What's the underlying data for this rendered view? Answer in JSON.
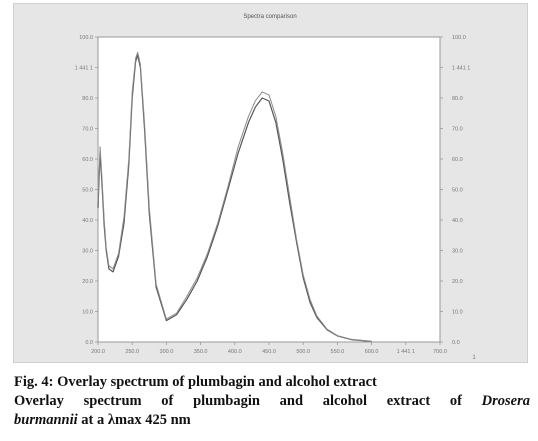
{
  "chart_data": {
    "type": "line",
    "title": "Spectra comparison",
    "xlabel": "",
    "ylabel": "",
    "xlim": [
      200,
      700
    ],
    "ylim": [
      0,
      100
    ],
    "x_ticks": [
      "200.0",
      "250.0",
      "300.0",
      "350.0",
      "400.0",
      "450.0",
      "500.0",
      "550.0",
      "600.0",
      "1 441 1",
      "700.0"
    ],
    "y_ticks_left": [
      "0.0",
      "10.0",
      "20.0",
      "30.0",
      "40.0",
      "50.0",
      "60.0",
      "70.0",
      "80.0",
      "1 441 1",
      "100.0"
    ],
    "y_ticks_right": [
      "0.0",
      "10.0",
      "20.0",
      "30.0",
      "40.0",
      "50.0",
      "60.0",
      "70.0",
      "80.0",
      "1 441 1",
      "100.0"
    ],
    "grid": false,
    "legend": "none",
    "series": [
      {
        "color": "#555555",
        "x": [
          200,
          203,
          206,
          209,
          212,
          216,
          222,
          230,
          238,
          245,
          250,
          255,
          258,
          262,
          268,
          275,
          285,
          300,
          315,
          330,
          345,
          360,
          375,
          390,
          405,
          420,
          430,
          440,
          450,
          460,
          470,
          480,
          490,
          500,
          510,
          520,
          535,
          550,
          570,
          600
        ],
        "y": [
          44,
          62,
          51,
          38,
          30,
          24,
          23,
          28,
          39,
          58,
          80,
          92,
          94,
          90,
          70,
          42,
          18,
          7,
          9,
          14,
          20,
          28,
          38,
          50,
          62,
          72,
          77,
          80,
          79,
          72,
          60,
          46,
          33,
          21,
          13,
          8,
          4,
          2,
          0.8,
          0.2
        ]
      },
      {
        "color": "#8a8a8a",
        "x": [
          200,
          203,
          206,
          209,
          212,
          216,
          222,
          230,
          238,
          245,
          250,
          255,
          258,
          262,
          268,
          275,
          285,
          300,
          315,
          330,
          345,
          360,
          375,
          390,
          405,
          420,
          430,
          440,
          450,
          460,
          470,
          480,
          490,
          500,
          510,
          520,
          535,
          550,
          570,
          600
        ],
        "y": [
          46,
          64,
          53,
          40,
          31,
          25,
          24,
          29,
          41,
          60,
          82,
          93,
          95,
          91,
          72,
          44,
          19,
          7.5,
          9.5,
          15,
          21,
          29,
          39,
          51,
          64,
          74,
          79,
          82,
          81,
          74,
          62,
          48,
          34,
          22,
          14,
          8.5,
          4.2,
          2.1,
          0.9,
          0.2
        ]
      }
    ]
  },
  "figure": {
    "vertical_marker": "1",
    "caption_line1": "Fig. 4: Overlay spectrum of plumbagin and alcohol extract",
    "caption_line2_a": "Overlay spectrum of plumbagin and alcohol extract of",
    "caption_line2_b": "Drosera",
    "caption_line3_a": "burmannii",
    "caption_line3_b": "at a λmax 425 nm"
  }
}
